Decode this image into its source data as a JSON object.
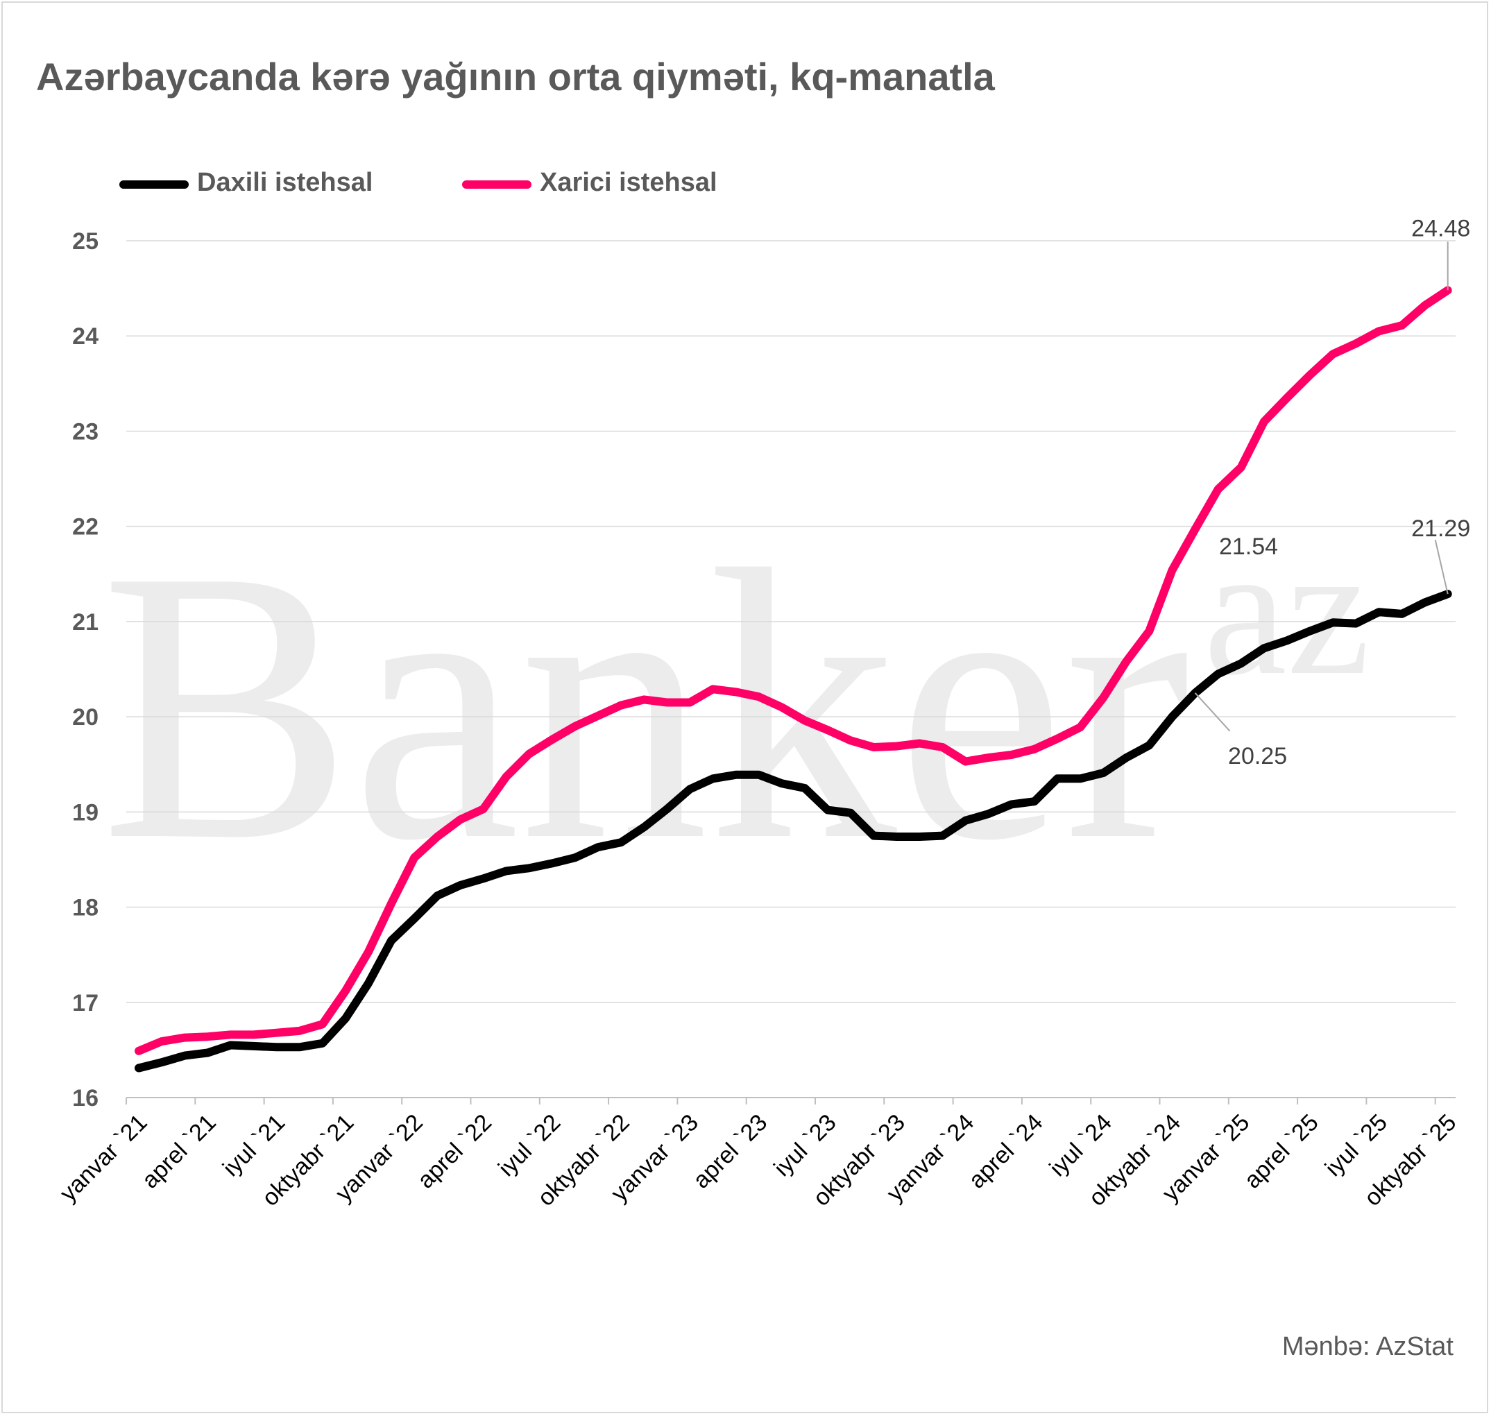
{
  "title": "Azərbaycanda kərə yağının orta qiyməti, kq-manatla",
  "source": "Mənbə: AzStat",
  "watermark": {
    "main": "Banker",
    "suffix": "az"
  },
  "colors": {
    "series_domestic": "#000000",
    "series_foreign": "#ff0066",
    "grid": "#d9d9d9",
    "text": "#595959"
  },
  "legend": {
    "placement": "top-left",
    "items": [
      {
        "label": "Daxili istehsal",
        "color": "#000000"
      },
      {
        "label": "Xarici istehsal",
        "color": "#ff0066"
      }
    ]
  },
  "chart_data": {
    "type": "line",
    "x": [
      "yanvar `21",
      "fevral `21",
      "mart `21",
      "aprel `21",
      "may `21",
      "iyun `21",
      "iyul `21",
      "avqust `21",
      "sentyabr `21",
      "oktyabr `21",
      "noyabr `21",
      "dekabr `21",
      "yanvar `22",
      "fevral `22",
      "mart `22",
      "aprel `22",
      "may `22",
      "iyun `22",
      "iyul `22",
      "avqust `22",
      "sentyabr `22",
      "oktyabr `22",
      "noyabr `22",
      "dekabr `22",
      "yanvar `23",
      "fevral `23",
      "mart `23",
      "aprel `23",
      "may `23",
      "iyun `23",
      "iyul `23",
      "avqust `23",
      "sentyabr `23",
      "oktyabr `23",
      "noyabr `23",
      "dekabr `23",
      "yanvar `24",
      "fevral `24",
      "mart `24",
      "aprel `24",
      "may `24",
      "iyun `24",
      "iyul `24",
      "avqust `24",
      "sentyabr `24",
      "oktyabr `24",
      "noyabr `24",
      "dekabr `24",
      "yanvar `25",
      "fevral `25",
      "mart `25",
      "aprel `25",
      "may `25",
      "iyun `25",
      "iyul `25",
      "avqust `25",
      "sentyabr `25",
      "oktyabr `25"
    ],
    "x_tick_labels": [
      "yanvar `21",
      "aprel `21",
      "iyul `21",
      "oktyabr `21",
      "yanvar `22",
      "aprel `22",
      "iyul `22",
      "oktyabr `22",
      "yanvar `23",
      "aprel `23",
      "iyul `23",
      "oktyabr `23",
      "yanvar `24",
      "aprel `24",
      "iyul `24",
      "oktyabr `24",
      "yanvar `25",
      "aprel `25",
      "iyul `25",
      "oktyabr `25"
    ],
    "series": [
      {
        "name": "Daxili istehsal",
        "color": "#000000",
        "values": [
          16.31,
          16.37,
          16.44,
          16.47,
          16.55,
          16.54,
          16.53,
          16.53,
          16.57,
          16.83,
          17.2,
          17.65,
          17.88,
          18.12,
          18.23,
          18.3,
          18.38,
          18.41,
          18.46,
          18.52,
          18.63,
          18.68,
          18.84,
          19.03,
          19.24,
          19.35,
          19.39,
          19.39,
          19.3,
          19.25,
          19.02,
          18.99,
          18.75,
          18.74,
          18.74,
          18.75,
          18.91,
          18.98,
          19.08,
          19.11,
          19.35,
          19.35,
          19.41,
          19.57,
          19.7,
          20.0,
          20.25,
          20.45,
          20.56,
          20.72,
          20.8,
          20.9,
          20.99,
          20.98,
          21.1,
          21.08,
          21.2,
          21.29
        ]
      },
      {
        "name": "Xarici istehsal",
        "color": "#ff0066",
        "values": [
          16.49,
          16.59,
          16.63,
          16.64,
          16.66,
          16.66,
          16.68,
          16.7,
          16.77,
          17.12,
          17.53,
          18.04,
          18.52,
          18.74,
          18.92,
          19.03,
          19.37,
          19.61,
          19.76,
          19.9,
          20.01,
          20.12,
          20.18,
          20.15,
          20.15,
          20.29,
          20.26,
          20.21,
          20.1,
          19.96,
          19.86,
          19.75,
          19.68,
          19.69,
          19.72,
          19.68,
          19.53,
          19.57,
          19.6,
          19.66,
          19.77,
          19.89,
          20.2,
          20.58,
          20.9,
          21.54,
          21.97,
          22.39,
          22.62,
          23.1,
          23.35,
          23.59,
          23.81,
          23.92,
          24.05,
          24.11,
          24.32,
          24.48
        ]
      }
    ],
    "annotations": [
      {
        "series": "Xarici istehsal",
        "x": "oktyabr `25",
        "label": "24.48"
      },
      {
        "series": "Daxili istehsal",
        "x": "oktyabr `25",
        "label": "21.29"
      },
      {
        "series": "Xarici istehsal",
        "x": "oktyabr `24",
        "label": "21.54"
      },
      {
        "series": "Daxili istehsal",
        "x": "noyabr `24",
        "label": "20.25"
      }
    ],
    "xlabel": "",
    "ylabel": "",
    "ylim": [
      16,
      25
    ],
    "yticks": [
      16,
      17,
      18,
      19,
      20,
      21,
      22,
      23,
      24,
      25
    ],
    "grid": "horizontal"
  }
}
